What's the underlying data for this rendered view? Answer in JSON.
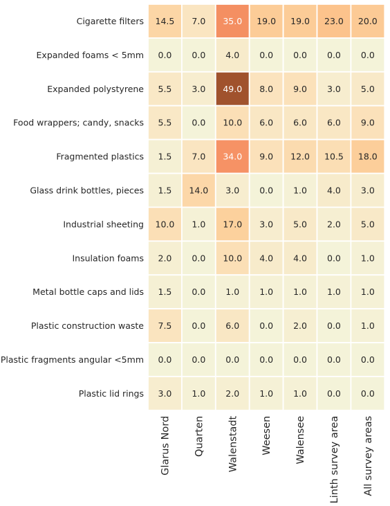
{
  "chart_data": {
    "type": "heatmap",
    "title": "",
    "xlabel": "",
    "ylabel": "",
    "columns": [
      "Glarus Nord",
      "Quarten",
      "Walenstadt",
      "Weesen",
      "Walensee",
      "Linth survey area",
      "All survey areas"
    ],
    "rows": [
      "Cigarette filters",
      "Expanded foams < 5mm",
      "Expanded polystyrene",
      "Food wrappers; candy, snacks",
      "Fragmented plastics",
      "Glass drink bottles, pieces",
      "Industrial sheeting",
      "Insulation foams",
      "Metal bottle caps and lids",
      "Plastic construction waste",
      "Plastic fragments angular <5mm",
      "Plastic lid rings"
    ],
    "values": [
      [
        14.5,
        7.0,
        35.0,
        19.0,
        19.0,
        23.0,
        20.0
      ],
      [
        0.0,
        0.0,
        4.0,
        0.0,
        0.0,
        0.0,
        0.0
      ],
      [
        5.5,
        3.0,
        49.0,
        8.0,
        9.0,
        3.0,
        5.0
      ],
      [
        5.5,
        0.0,
        10.0,
        6.0,
        6.0,
        6.0,
        9.0
      ],
      [
        1.5,
        7.0,
        34.0,
        9.0,
        12.0,
        10.5,
        18.0
      ],
      [
        1.5,
        14.0,
        3.0,
        0.0,
        1.0,
        4.0,
        3.0
      ],
      [
        10.0,
        1.0,
        17.0,
        3.0,
        5.0,
        2.0,
        5.0
      ],
      [
        2.0,
        0.0,
        10.0,
        4.0,
        4.0,
        0.0,
        1.0
      ],
      [
        1.5,
        0.0,
        1.0,
        1.0,
        1.0,
        1.0,
        1.0
      ],
      [
        7.5,
        0.0,
        6.0,
        0.0,
        2.0,
        0.0,
        1.0
      ],
      [
        0.0,
        0.0,
        0.0,
        0.0,
        0.0,
        0.0,
        0.0
      ],
      [
        3.0,
        1.0,
        2.0,
        1.0,
        1.0,
        0.0,
        0.0
      ]
    ],
    "value_format": "one-decimal",
    "colormap": [
      "#f4f3d9",
      "#fbe3bd",
      "#fcd29f",
      "#fcc088",
      "#f9976a",
      "#e87a4e",
      "#a0522d"
    ],
    "vmin": 0,
    "vmax": 49,
    "grid": false,
    "legend": "none",
    "cell_border_color": "#ffffff"
  }
}
